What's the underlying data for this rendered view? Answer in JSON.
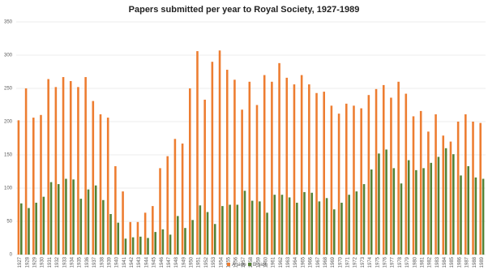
{
  "chart_data": {
    "type": "bar",
    "title": "Papers submitted per year to Royal Society, 1927-1989",
    "categories": [
      "1927",
      "1928",
      "1929",
      "1930",
      "1931",
      "1932",
      "1933",
      "1934",
      "1935",
      "1936",
      "1937",
      "1938",
      "1939",
      "1940",
      "1941",
      "1942",
      "1943",
      "1944",
      "1945",
      "1946",
      "1947",
      "1948",
      "1949",
      "1950",
      "1951",
      "1952",
      "1953",
      "1954",
      "1955",
      "1956",
      "1957",
      "1958",
      "1959",
      "1960",
      "1961",
      "1962",
      "1963",
      "1964",
      "1965",
      "1966",
      "1967",
      "1968",
      "1969",
      "1970",
      "1971",
      "1972",
      "1973",
      "1974",
      "1975",
      "1976",
      "1977",
      "1978",
      "1979",
      "1980",
      "1981",
      "1982",
      "1983",
      "1984",
      "1985",
      "1986",
      "1987",
      "1988",
      "1989"
    ],
    "series": [
      {
        "name": "A side",
        "color": "#ed7d31",
        "values": [
          202,
          250,
          206,
          210,
          264,
          252,
          267,
          261,
          252,
          267,
          231,
          211,
          206,
          133,
          95,
          49,
          49,
          63,
          73,
          130,
          148,
          174,
          167,
          250,
          306,
          233,
          290,
          307,
          278,
          263,
          218,
          260,
          225,
          270,
          260,
          288,
          266,
          256,
          270,
          256,
          243,
          245,
          224,
          212,
          227,
          224,
          220,
          240,
          249,
          255,
          236,
          260,
          242,
          208,
          216,
          185,
          211,
          179,
          170,
          200,
          211,
          200,
          198
        ]
      },
      {
        "name": "B side",
        "color": "#548235",
        "values": [
          77,
          70,
          78,
          87,
          109,
          106,
          114,
          113,
          84,
          98,
          104,
          82,
          61,
          48,
          24,
          26,
          27,
          25,
          34,
          38,
          30,
          58,
          40,
          52,
          74,
          64,
          46,
          73,
          75,
          75,
          96,
          81,
          80,
          63,
          90,
          90,
          86,
          78,
          94,
          93,
          80,
          85,
          68,
          78,
          90,
          95,
          106,
          128,
          152,
          158,
          130,
          107,
          142,
          127,
          130,
          138,
          147,
          160,
          151,
          119,
          133,
          116,
          114
        ]
      }
    ],
    "ylim": [
      0,
      350
    ],
    "yticks": [
      0,
      50,
      100,
      150,
      200,
      250,
      300,
      350
    ],
    "grid": true,
    "legend": "bottom"
  }
}
